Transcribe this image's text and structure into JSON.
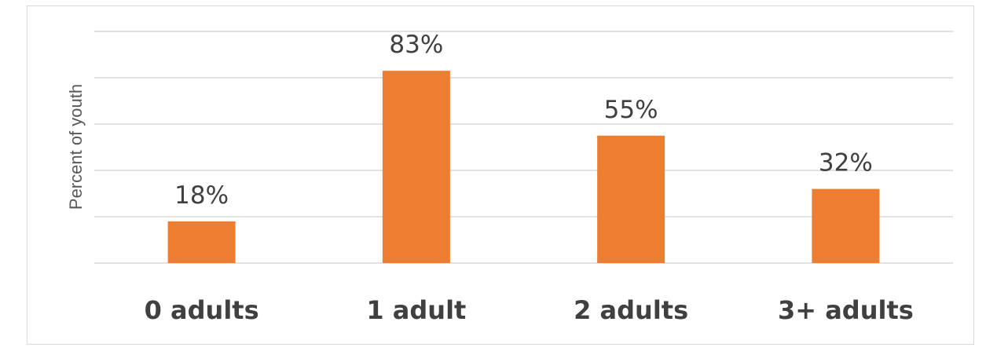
{
  "chart_data": {
    "type": "bar",
    "title": "",
    "xlabel": "",
    "ylabel": "Percent of youth",
    "categories": [
      "0 adults",
      "1 adult",
      "2 adults",
      "3+ adults"
    ],
    "values": [
      18,
      83,
      55,
      32
    ],
    "data_labels": [
      "18%",
      "83%",
      "55%",
      "32%"
    ],
    "ylim": [
      0,
      100
    ],
    "grid": true,
    "legend": "none",
    "bar_color": "#ED7D31",
    "gridline_color": "#D9D9D9"
  }
}
